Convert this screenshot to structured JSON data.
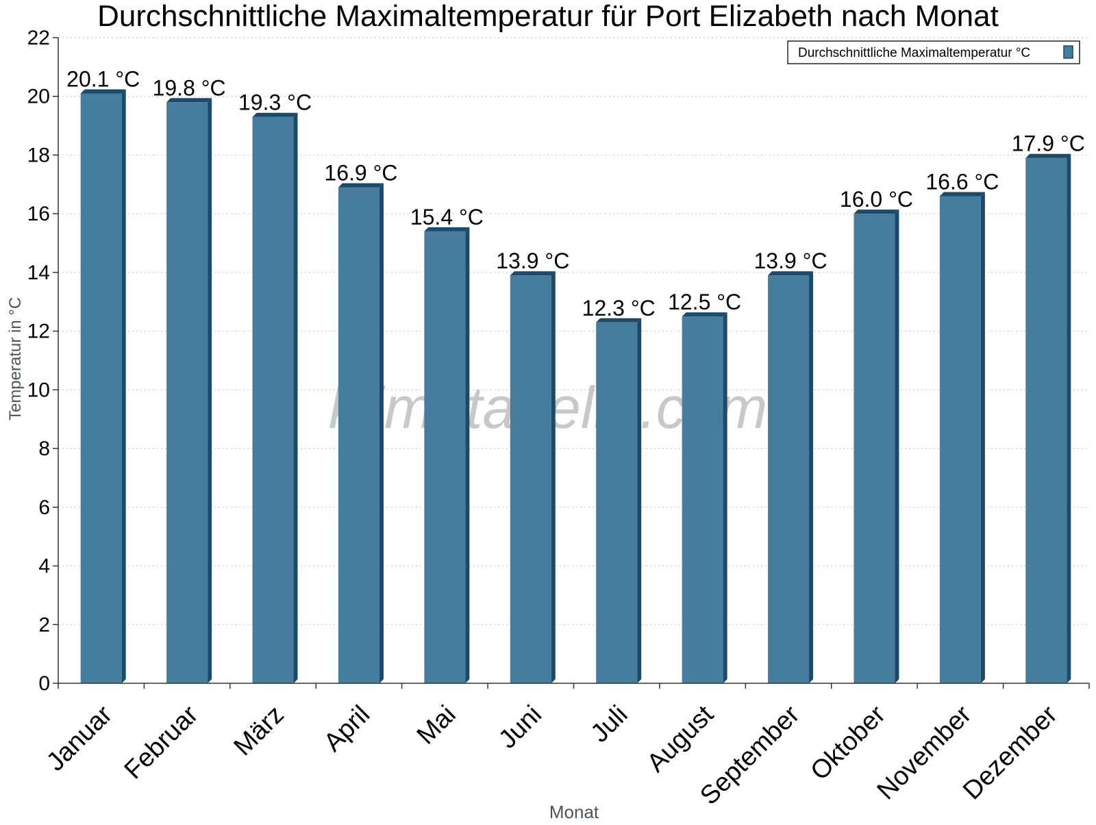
{
  "chart_data": {
    "type": "bar",
    "title": "Durchschnittliche Maximaltemperatur für Port Elizabeth nach Monat",
    "xlabel": "Monat",
    "ylabel": "Temperatur in °C",
    "categories": [
      "Januar",
      "Februar",
      "März",
      "April",
      "Mai",
      "Juni",
      "Juli",
      "August",
      "September",
      "Oktober",
      "November",
      "Dezember"
    ],
    "series": [
      {
        "name": "Durchschnittliche Maximaltemperatur °C",
        "values": [
          20.1,
          19.8,
          19.3,
          16.9,
          15.4,
          13.9,
          12.3,
          12.5,
          13.9,
          16.0,
          16.6,
          17.9
        ],
        "data_labels": [
          "20.1 °C",
          "19.8 °C",
          "19.3 °C",
          "16.9 °C",
          "15.4 °C",
          "13.9 °C",
          "12.3 °C",
          "12.5 °C",
          "13.9 °C",
          "16.0 °C",
          "16.6 °C",
          "17.9 °C"
        ],
        "color": "#467c9e",
        "edge_color": "#1b4a6b"
      }
    ],
    "ylim": [
      0,
      22
    ],
    "yticks": [
      0,
      2,
      4,
      6,
      8,
      10,
      12,
      14,
      16,
      18,
      20,
      22
    ],
    "grid": true,
    "legend_position": "top-right"
  },
  "watermark": "klimatabelle.com",
  "colors": {
    "bar": "#467c9e",
    "bar_edge": "#1b4a6b",
    "grid": "#c8c8c8",
    "axis_label": "#4a5560",
    "text": "#000000"
  }
}
